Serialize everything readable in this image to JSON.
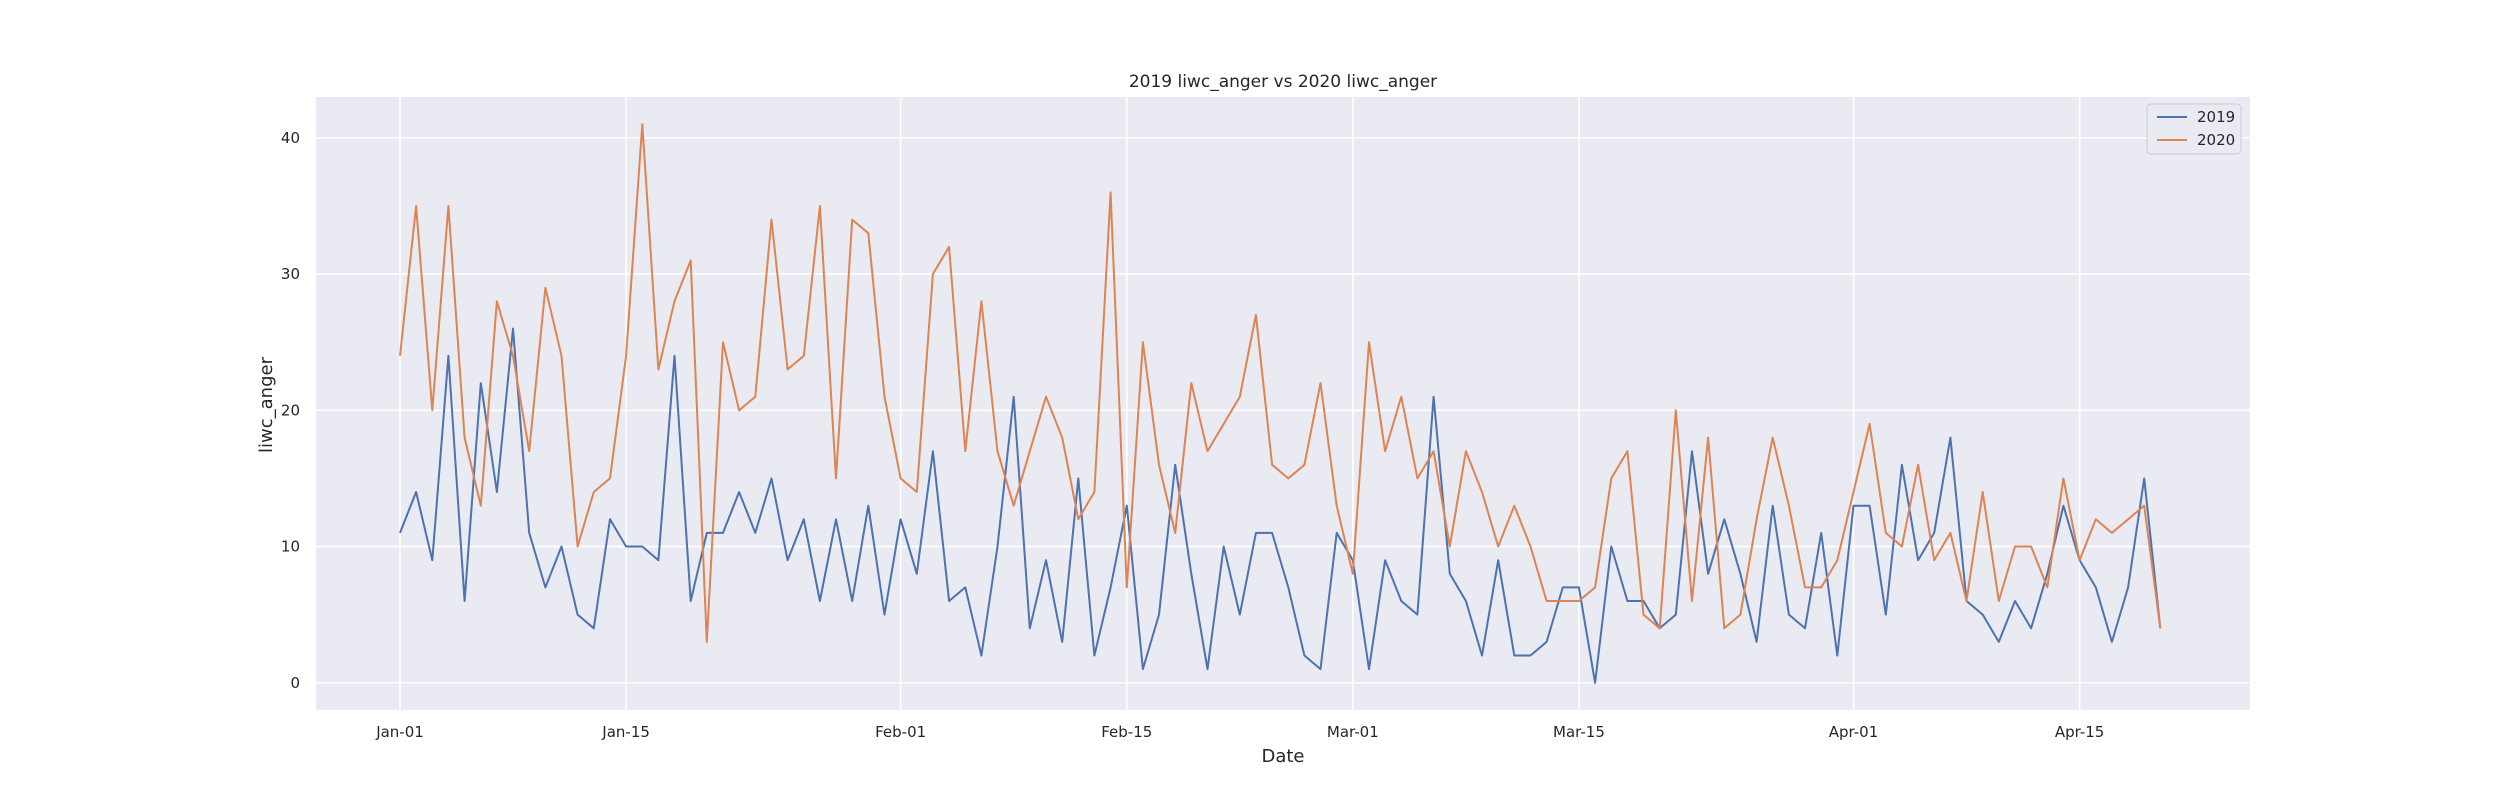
{
  "chart_data": {
    "type": "line",
    "title": "2019 liwc_anger vs 2020 liwc_anger",
    "xlabel": "Date",
    "ylabel": "liwc_anger",
    "x_start": "Jan-01",
    "x_ticks": [
      "Jan-01",
      "Jan-15",
      "Feb-01",
      "Feb-15",
      "Mar-01",
      "Mar-15",
      "Apr-01",
      "Apr-15"
    ],
    "y_ticks": [
      0,
      10,
      20,
      30,
      40
    ],
    "ylim": [
      -2,
      43
    ],
    "grid": true,
    "legend_position": "top-right",
    "series": [
      {
        "name": "2019",
        "color": "#4c72b0",
        "values": [
          11,
          14,
          9,
          24,
          6,
          22,
          14,
          26,
          11,
          7,
          10,
          5,
          4,
          12,
          10,
          10,
          9,
          24,
          6,
          11,
          11,
          14,
          11,
          15,
          9,
          12,
          6,
          12,
          6,
          13,
          5,
          12,
          8,
          17,
          6,
          7,
          2,
          10,
          21,
          4,
          9,
          3,
          15,
          2,
          7,
          13,
          1,
          5,
          16,
          8,
          1,
          10,
          5,
          11,
          11,
          7,
          2,
          1,
          11,
          9,
          1,
          9,
          6,
          5,
          21,
          8,
          6,
          2,
          9,
          2,
          2,
          3,
          7,
          7,
          0,
          10,
          6,
          6,
          4,
          5,
          17,
          8,
          12,
          8,
          3,
          13,
          5,
          4,
          11,
          2,
          13,
          13,
          5,
          16,
          9,
          11,
          18,
          6,
          5,
          3,
          6,
          4,
          8,
          13,
          9,
          7,
          3,
          7,
          15,
          4
        ]
      },
      {
        "name": "2020",
        "color": "#dd8452",
        "values": [
          24,
          35,
          20,
          35,
          18,
          13,
          28,
          24,
          17,
          29,
          24,
          10,
          14,
          15,
          24,
          41,
          23,
          28,
          31,
          3,
          25,
          20,
          21,
          34,
          23,
          24,
          35,
          15,
          34,
          33,
          21,
          15,
          14,
          30,
          32,
          17,
          28,
          17,
          13,
          17,
          21,
          18,
          12,
          14,
          36,
          7,
          25,
          16,
          11,
          22,
          17,
          19,
          21,
          27,
          16,
          15,
          16,
          22,
          13,
          8,
          25,
          17,
          21,
          15,
          17,
          10,
          17,
          14,
          10,
          13,
          10,
          6,
          6,
          6,
          7,
          15,
          17,
          5,
          4,
          20,
          6,
          18,
          4,
          5,
          12,
          18,
          13,
          7,
          7,
          9,
          14,
          19,
          11,
          10,
          16,
          9,
          11,
          6,
          14,
          6,
          10,
          10,
          7,
          15,
          9,
          12,
          11,
          12,
          13,
          4
        ]
      }
    ]
  }
}
